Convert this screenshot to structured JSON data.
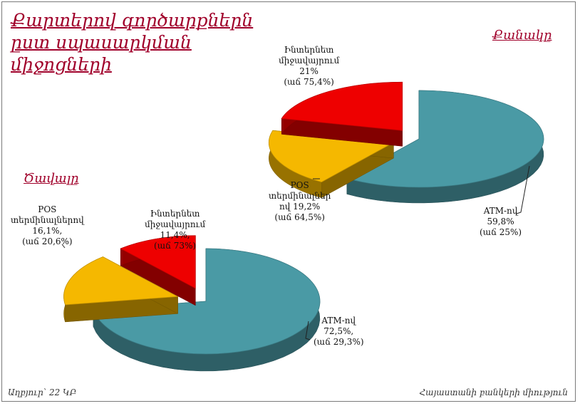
{
  "title": [
    "Քարտերով գործարքներն",
    "ըստ սպասարկման",
    "միջոցների"
  ],
  "footer": {
    "source": "Աղբյուր՝ 22 ԿԲ",
    "org": "Հայաստանի բանկերի միություն"
  },
  "colors": {
    "atm": "#4a9aa5",
    "pos": "#f5b800",
    "internet": "#ee0000",
    "title": "#a0002a"
  },
  "chart_data": [
    {
      "type": "pie",
      "title": "Քանակը",
      "slices": [
        {
          "key": "atm",
          "name": "ATM-ով",
          "value": 59.8,
          "lines": [
            "ATM-ով",
            "59,8%",
            "(աճ  25%)"
          ]
        },
        {
          "key": "pos",
          "name": "POS տերմինալներով",
          "value": 19.2,
          "lines": [
            "POS",
            "տերմինալներ",
            "ով 19,2%",
            "(աճ 64,5%)"
          ]
        },
        {
          "key": "internet",
          "name": "Ինտերնետ միջավայրում",
          "value": 21,
          "lines": [
            "Ինտերնետ",
            "միջավայրում",
            "21%",
            "(աճ  75,4%)"
          ]
        }
      ]
    },
    {
      "type": "pie",
      "title": "Ծավալը",
      "slices": [
        {
          "key": "atm",
          "name": "ATM-ով",
          "value": 72.5,
          "lines": [
            "ATM-ով",
            "72,5%,",
            "(աճ 29,3%)"
          ]
        },
        {
          "key": "pos",
          "name": "POS տերմինալներով",
          "value": 16.1,
          "lines": [
            "POS",
            "տերմինալներով",
            "16,1%,",
            "(աճ 20,6%)"
          ]
        },
        {
          "key": "internet",
          "name": "Ինտերնետ միջավայրում",
          "value": 11.4,
          "lines": [
            "Ինտերնետ",
            "միջավայրում",
            "11,4%,",
            "(աճ 73%)"
          ]
        }
      ]
    }
  ]
}
